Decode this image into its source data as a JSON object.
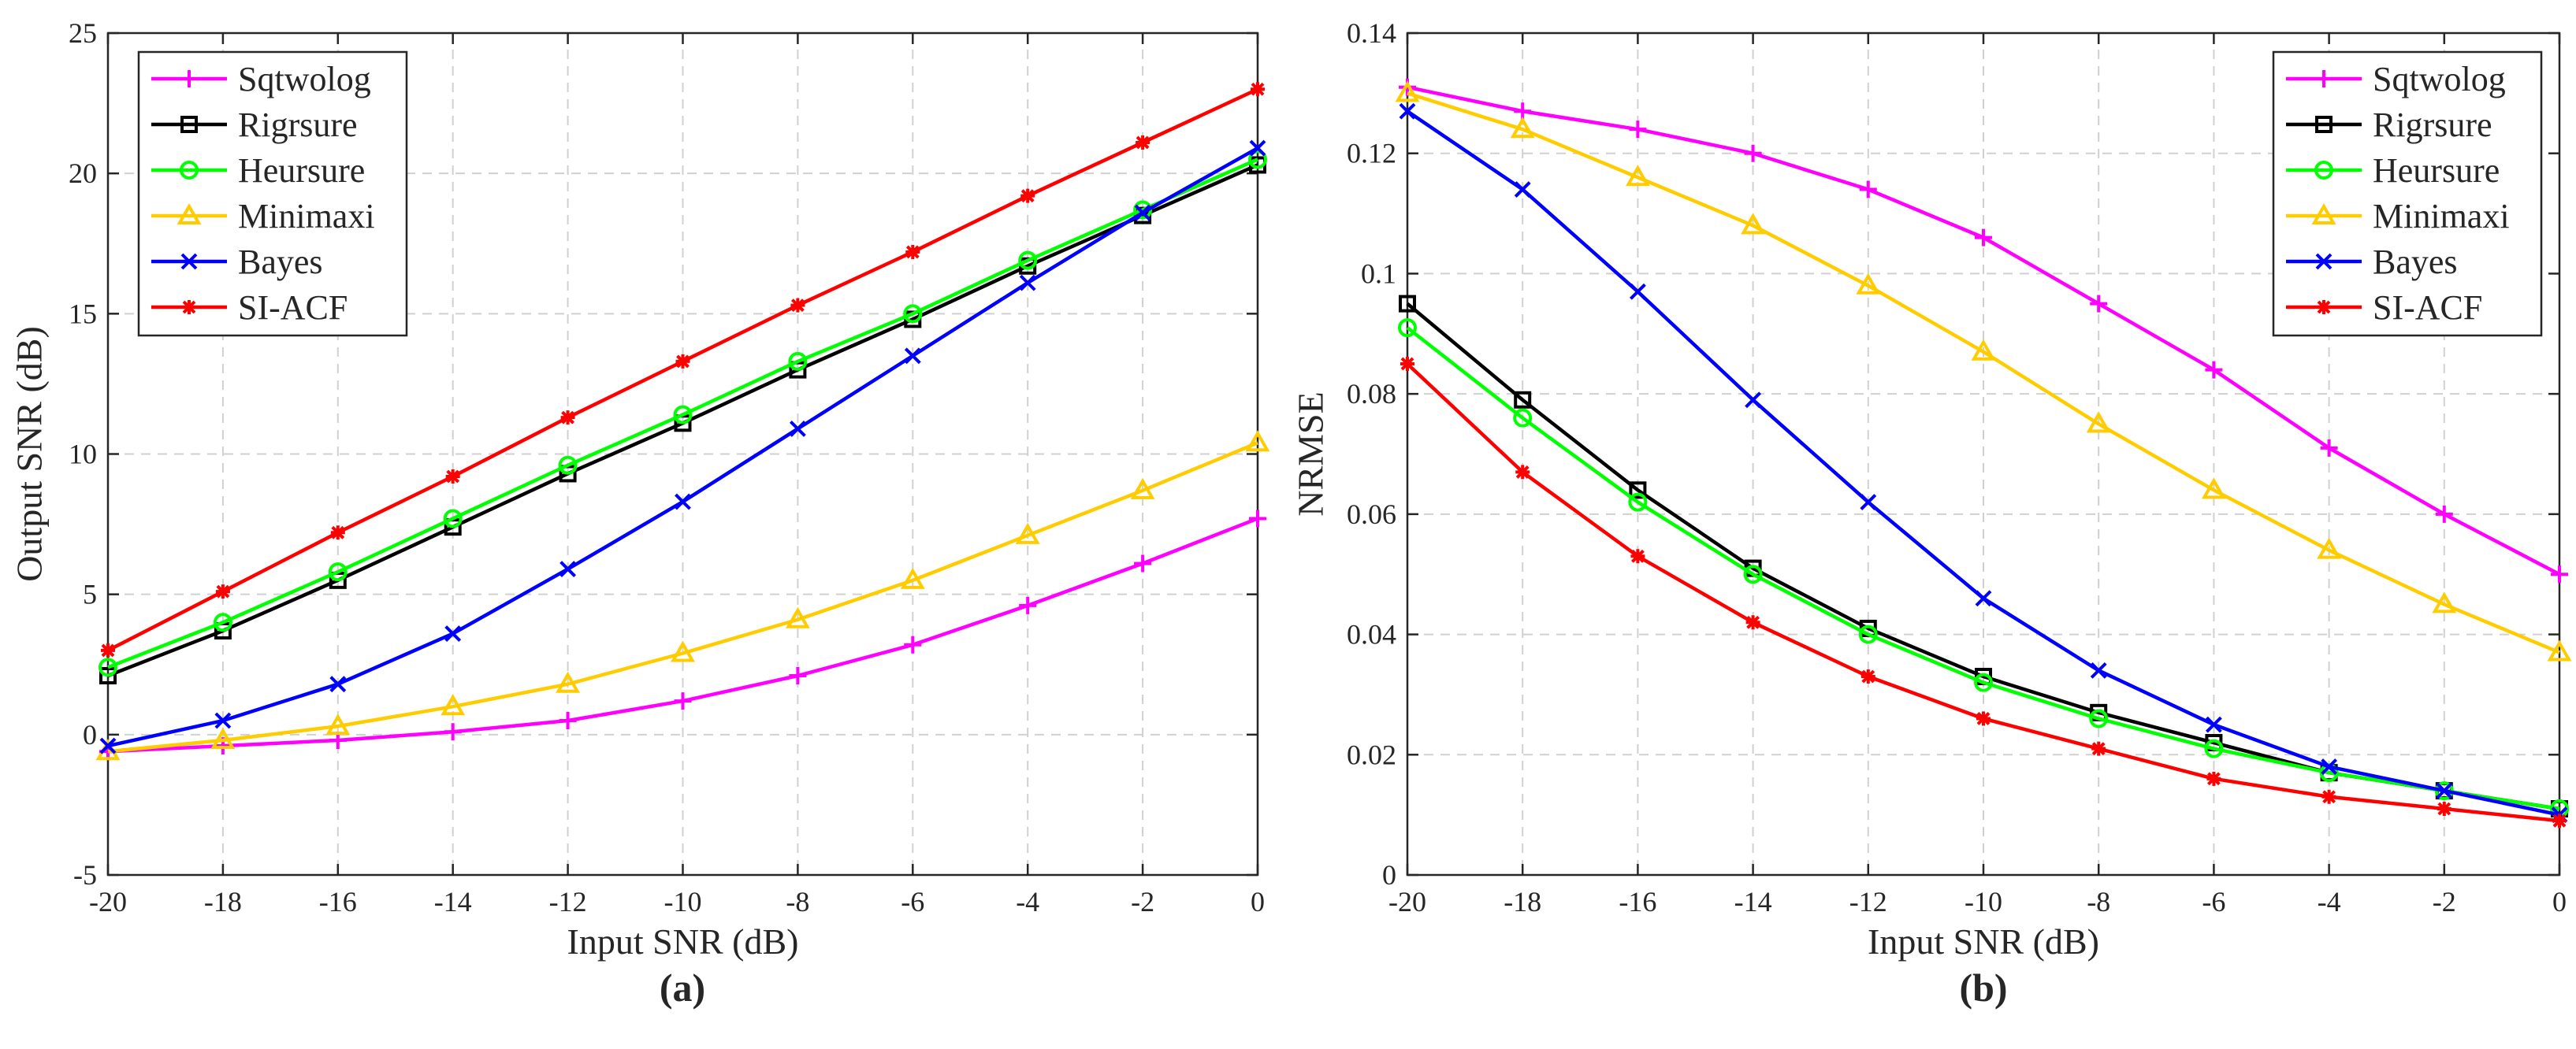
{
  "chart_data": [
    {
      "type": "line",
      "caption": "(a)",
      "xlabel": "Input SNR (dB)",
      "ylabel": "Output SNR (dB)",
      "xlim": [
        -20,
        0
      ],
      "ylim": [
        -5,
        25
      ],
      "xticks": [
        -20,
        -18,
        -16,
        -14,
        -12,
        -10,
        -8,
        -6,
        -4,
        -2,
        0
      ],
      "yticks": [
        -5,
        0,
        5,
        10,
        15,
        20,
        25
      ],
      "ytick_labels": [
        "-5",
        "0",
        "5",
        "10",
        "15",
        "20",
        "25"
      ],
      "grid": true,
      "legend_position": "top-left",
      "x": [
        -20,
        -18,
        -16,
        -14,
        -12,
        -10,
        -8,
        -6,
        -4,
        -2,
        0
      ],
      "series": [
        {
          "name": "Sqtwolog",
          "color": "#ff00ff",
          "marker": "plus",
          "values": [
            -0.6,
            -0.4,
            -0.2,
            0.1,
            0.5,
            1.2,
            2.1,
            3.2,
            4.6,
            6.1,
            7.7
          ]
        },
        {
          "name": "Rigrsure",
          "color": "#000000",
          "marker": "square",
          "values": [
            2.1,
            3.7,
            5.5,
            7.4,
            9.3,
            11.1,
            13.0,
            14.8,
            16.7,
            18.5,
            20.3
          ]
        },
        {
          "name": "Heursure",
          "color": "#00ff00",
          "marker": "circle",
          "values": [
            2.4,
            4.0,
            5.8,
            7.7,
            9.6,
            11.4,
            13.3,
            15.0,
            16.9,
            18.7,
            20.5
          ]
        },
        {
          "name": "Minimaxi",
          "color": "#ffcc00",
          "marker": "triangle",
          "values": [
            -0.6,
            -0.2,
            0.3,
            1.0,
            1.8,
            2.9,
            4.1,
            5.5,
            7.1,
            8.7,
            10.4
          ]
        },
        {
          "name": "Bayes",
          "color": "#0000ff",
          "marker": "x",
          "values": [
            -0.4,
            0.5,
            1.8,
            3.6,
            5.9,
            8.3,
            10.9,
            13.5,
            16.1,
            18.6,
            20.9
          ]
        },
        {
          "name": "SI-ACF",
          "color": "#ff0000",
          "marker": "star",
          "values": [
            3.0,
            5.1,
            7.2,
            9.2,
            11.3,
            13.3,
            15.3,
            17.2,
            19.2,
            21.1,
            23.0
          ]
        }
      ]
    },
    {
      "type": "line",
      "caption": "(b)",
      "xlabel": "Input SNR (dB)",
      "ylabel": "NRMSE",
      "xlim": [
        -20,
        0
      ],
      "ylim": [
        0,
        0.14
      ],
      "xticks": [
        -20,
        -18,
        -16,
        -14,
        -12,
        -10,
        -8,
        -6,
        -4,
        -2,
        0
      ],
      "yticks": [
        0,
        0.02,
        0.04,
        0.06,
        0.08,
        0.1,
        0.12,
        0.14
      ],
      "ytick_labels": [
        "0",
        "0.02",
        "0.04",
        "0.06",
        "0.08",
        "0.1",
        "0.12",
        "0.14"
      ],
      "grid": true,
      "legend_position": "top-right",
      "x": [
        -20,
        -18,
        -16,
        -14,
        -12,
        -10,
        -8,
        -6,
        -4,
        -2,
        0
      ],
      "series": [
        {
          "name": "Sqtwolog",
          "color": "#ff00ff",
          "marker": "plus",
          "values": [
            0.131,
            0.127,
            0.124,
            0.12,
            0.114,
            0.106,
            0.095,
            0.084,
            0.071,
            0.06,
            0.05
          ]
        },
        {
          "name": "Rigrsure",
          "color": "#000000",
          "marker": "square",
          "values": [
            0.095,
            0.079,
            0.064,
            0.051,
            0.041,
            0.033,
            0.027,
            0.022,
            0.017,
            0.014,
            0.011
          ]
        },
        {
          "name": "Heursure",
          "color": "#00ff00",
          "marker": "circle",
          "values": [
            0.091,
            0.076,
            0.062,
            0.05,
            0.04,
            0.032,
            0.026,
            0.021,
            0.017,
            0.014,
            0.011
          ]
        },
        {
          "name": "Minimaxi",
          "color": "#ffcc00",
          "marker": "triangle",
          "values": [
            0.13,
            0.124,
            0.116,
            0.108,
            0.098,
            0.087,
            0.075,
            0.064,
            0.054,
            0.045,
            0.037
          ]
        },
        {
          "name": "Bayes",
          "color": "#0000ff",
          "marker": "x",
          "values": [
            0.127,
            0.114,
            0.097,
            0.079,
            0.062,
            0.046,
            0.034,
            0.025,
            0.018,
            0.014,
            0.01
          ]
        },
        {
          "name": "SI-ACF",
          "color": "#ff0000",
          "marker": "star",
          "values": [
            0.085,
            0.067,
            0.053,
            0.042,
            0.033,
            0.026,
            0.021,
            0.016,
            0.013,
            0.011,
            0.009
          ]
        }
      ]
    }
  ]
}
